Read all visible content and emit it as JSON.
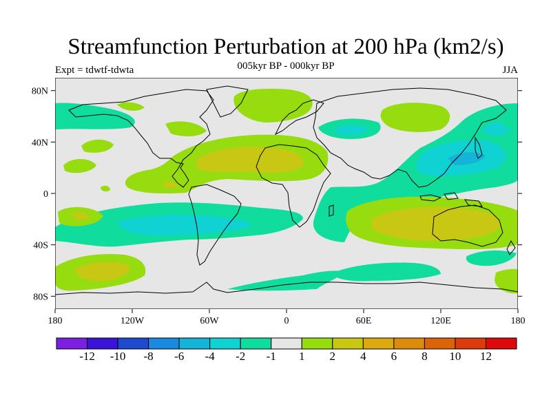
{
  "title": "Streamfunction Perturbation at 200 hPa (km2/s)",
  "subtitle": "005kyr BP - 000kyr BP",
  "left_label": "Expt = tdwtf-tdwta",
  "right_label": "JJA",
  "axes": {
    "lat_ticks": [
      {
        "value": 80,
        "label": "80N"
      },
      {
        "value": 40,
        "label": "40N"
      },
      {
        "value": 0,
        "label": "0"
      },
      {
        "value": -40,
        "label": "40S"
      },
      {
        "value": -80,
        "label": "80S"
      }
    ],
    "lon_ticks": [
      {
        "value": 180,
        "label": "180"
      },
      {
        "value": 240,
        "label": "120W"
      },
      {
        "value": 300,
        "label": "60W"
      },
      {
        "value": 360,
        "label": "0"
      },
      {
        "value": 420,
        "label": "60E"
      },
      {
        "value": 480,
        "label": "120E"
      },
      {
        "value": 540,
        "label": "180"
      }
    ]
  },
  "colorbar": {
    "colors": [
      "#7b20e0",
      "#3a14d8",
      "#1e4ad0",
      "#1a8ae0",
      "#14b4d8",
      "#10d2d2",
      "#10dc9e",
      "#e6e6e6",
      "#96dc0e",
      "#c8c814",
      "#dcaa0e",
      "#dc8c0a",
      "#dc6408",
      "#dc3c0a",
      "#dc0a0a"
    ],
    "labels": [
      "-12",
      "-10",
      "-8",
      "-6",
      "-4",
      "-2",
      "-1",
      "1",
      "2",
      "4",
      "6",
      "8",
      "10",
      "12"
    ]
  },
  "colors": {
    "background": "#e6e6e6",
    "neg1": "#10dc9e",
    "neg2": "#10d2d2",
    "neg4": "#14b4d8",
    "pos1": "#96dc0e",
    "pos2": "#c8c814"
  }
}
